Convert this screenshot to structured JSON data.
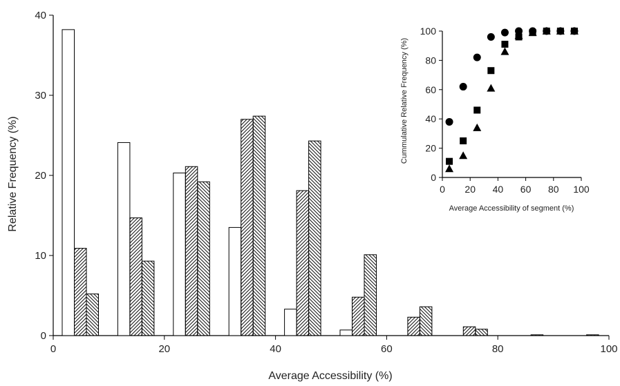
{
  "chart_data": [
    {
      "type": "bar",
      "xlabel": "Average Accessibility (%)",
      "ylabel": "Relative Frequency (%)",
      "xlim": [
        0,
        100
      ],
      "ylim": [
        0,
        40
      ],
      "x_ticks": [
        0,
        20,
        40,
        60,
        80,
        100
      ],
      "y_ticks": [
        0,
        10,
        20,
        30,
        40
      ],
      "categories": [
        5,
        15,
        25,
        35,
        45,
        55,
        65,
        75,
        85,
        95
      ],
      "series": [
        {
          "pattern": "none",
          "values": [
            38.2,
            24.1,
            20.3,
            13.5,
            3.3,
            0.7,
            0.0,
            0.0,
            0.0,
            0.0
          ]
        },
        {
          "pattern": "diagonal-up",
          "values": [
            10.9,
            14.7,
            21.1,
            27.0,
            18.1,
            4.8,
            2.3,
            1.1,
            0.0,
            0.0
          ]
        },
        {
          "pattern": "diagonal-down",
          "values": [
            5.2,
            9.3,
            19.2,
            27.4,
            24.3,
            10.1,
            3.6,
            0.8,
            0.1,
            0.1
          ]
        }
      ]
    },
    {
      "type": "scatter",
      "xlabel": "Average Accessibility of segment (%)",
      "ylabel": "Cummulative Relative Frequency (%)",
      "xlim": [
        0,
        100
      ],
      "ylim": [
        0,
        100
      ],
      "x_ticks": [
        0,
        20,
        40,
        60,
        80,
        100
      ],
      "y_ticks": [
        0,
        20,
        40,
        60,
        80,
        100
      ],
      "x": [
        5,
        15,
        25,
        35,
        45,
        55,
        65,
        75,
        85,
        95
      ],
      "series": [
        {
          "marker": "circle",
          "values": [
            38,
            62,
            82,
            96,
            99,
            100,
            100,
            100,
            100,
            100
          ]
        },
        {
          "marker": "square",
          "values": [
            11,
            25,
            46,
            73,
            91,
            96,
            99,
            100,
            100,
            100
          ]
        },
        {
          "marker": "triangle",
          "values": [
            6,
            15,
            34,
            61,
            86,
            97,
            99,
            100,
            100,
            100
          ]
        }
      ]
    }
  ]
}
